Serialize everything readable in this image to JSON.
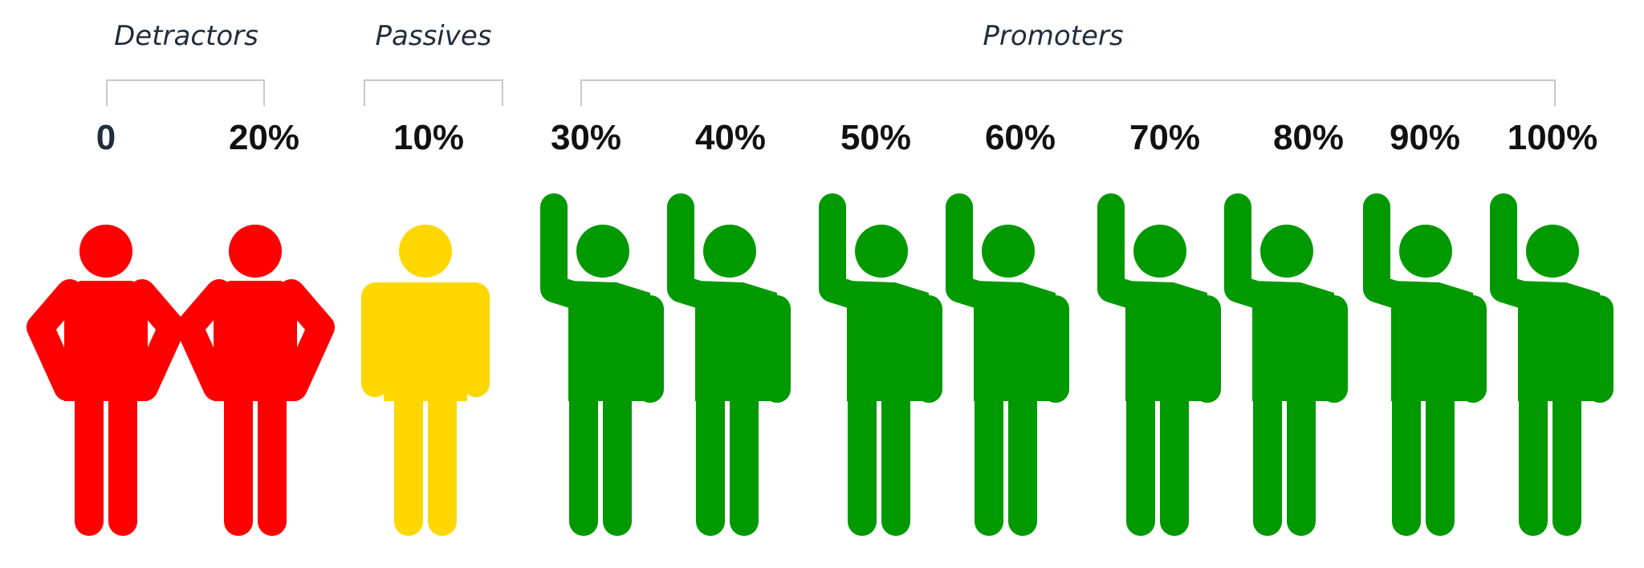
{
  "groups": {
    "detractors": "Detractors",
    "passives": "Passives",
    "promoters": "Promoters"
  },
  "colors": {
    "detractor": "#ff0000",
    "passive": "#ffd700",
    "promoter": "#009900",
    "bracket": "#c8c8c8",
    "group_text": "#1f2d3d"
  },
  "scale": [
    "0",
    "20%",
    "10%",
    "30%",
    "40%",
    "50%",
    "60%",
    "70%",
    "80%",
    "90%",
    "100%"
  ],
  "figures": [
    {
      "type": "detractor",
      "pose": "hands-on-hips"
    },
    {
      "type": "detractor",
      "pose": "hands-on-hips"
    },
    {
      "type": "passive",
      "pose": "standing"
    },
    {
      "type": "promoter",
      "pose": "arm-raised"
    },
    {
      "type": "promoter",
      "pose": "arm-raised"
    },
    {
      "type": "promoter",
      "pose": "arm-raised"
    },
    {
      "type": "promoter",
      "pose": "arm-raised"
    },
    {
      "type": "promoter",
      "pose": "arm-raised"
    },
    {
      "type": "promoter",
      "pose": "arm-raised"
    },
    {
      "type": "promoter",
      "pose": "arm-raised"
    },
    {
      "type": "promoter",
      "pose": "arm-raised"
    }
  ]
}
